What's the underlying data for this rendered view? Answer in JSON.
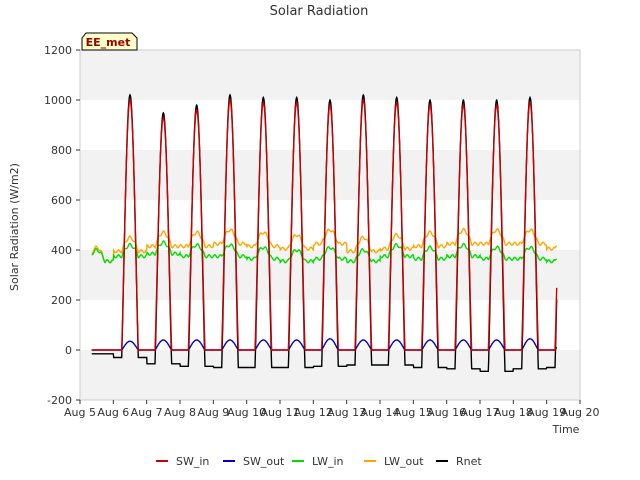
{
  "chart_data": {
    "type": "line",
    "title": "Solar Radiation",
    "xlabel": "Time",
    "ylabel": "Solar Radiation (W/m2)",
    "site_label": "EE_met",
    "xlim": [
      5,
      20
    ],
    "ylim": [
      -200,
      1200
    ],
    "x_ticks": [
      5,
      6,
      7,
      8,
      9,
      10,
      11,
      12,
      13,
      14,
      15,
      16,
      17,
      18,
      19,
      20
    ],
    "x_tick_labels": [
      "Aug 5",
      "Aug 6",
      "Aug 7",
      "Aug 8",
      "Aug 9",
      "Aug 10",
      "Aug 11",
      "Aug 12",
      "Aug 13",
      "Aug 14",
      "Aug 15",
      "Aug 16",
      "Aug 17",
      "Aug 18",
      "Aug 19",
      "Aug 20"
    ],
    "y_ticks": [
      -200,
      0,
      200,
      400,
      600,
      800,
      1000,
      1200
    ],
    "y_tick_labels": [
      "-200",
      "0",
      "200",
      "400",
      "600",
      "800",
      "1000",
      "1200"
    ],
    "grid": "horizontal bands",
    "legend_position": "bottom",
    "x_start": 5.35,
    "x_end": 19.3,
    "sunrise_offset": 0.25,
    "sunset_offset": 0.75,
    "days": [
      {
        "day": 5,
        "sw_peak": 0,
        "sw_out_peak": 0,
        "lw_in": 400,
        "lw_out": 410,
        "rnet_night": -15
      },
      {
        "day": 6,
        "sw_peak": 1000,
        "sw_out_peak": 35,
        "lw_in": 420,
        "lw_out": 450,
        "rnet_night": -30
      },
      {
        "day": 7,
        "sw_peak": 930,
        "sw_out_peak": 40,
        "lw_in": 430,
        "lw_out": 470,
        "rnet_night": -55
      },
      {
        "day": 8,
        "sw_peak": 960,
        "sw_out_peak": 40,
        "lw_in": 420,
        "lw_out": 470,
        "rnet_night": -65
      },
      {
        "day": 9,
        "sw_peak": 1000,
        "sw_out_peak": 40,
        "lw_in": 420,
        "lw_out": 480,
        "rnet_night": -70
      },
      {
        "day": 10,
        "sw_peak": 990,
        "sw_out_peak": 40,
        "lw_in": 410,
        "lw_out": 470,
        "rnet_night": -70
      },
      {
        "day": 11,
        "sw_peak": 990,
        "sw_out_peak": 40,
        "lw_in": 400,
        "lw_out": 460,
        "rnet_night": -70
      },
      {
        "day": 12,
        "sw_peak": 980,
        "sw_out_peak": 45,
        "lw_in": 410,
        "lw_out": 480,
        "rnet_night": -65
      },
      {
        "day": 13,
        "sw_peak": 1000,
        "sw_out_peak": 40,
        "lw_in": 400,
        "lw_out": 450,
        "rnet_night": -60
      },
      {
        "day": 14,
        "sw_peak": 990,
        "sw_out_peak": 40,
        "lw_in": 420,
        "lw_out": 460,
        "rnet_night": -60
      },
      {
        "day": 15,
        "sw_peak": 980,
        "sw_out_peak": 40,
        "lw_in": 410,
        "lw_out": 470,
        "rnet_night": -70
      },
      {
        "day": 16,
        "sw_peak": 980,
        "sw_out_peak": 40,
        "lw_in": 420,
        "lw_out": 480,
        "rnet_night": -75
      },
      {
        "day": 17,
        "sw_peak": 980,
        "sw_out_peak": 40,
        "lw_in": 410,
        "lw_out": 480,
        "rnet_night": -85
      },
      {
        "day": 18,
        "sw_peak": 990,
        "sw_out_peak": 45,
        "lw_in": 410,
        "lw_out": 480,
        "rnet_night": -75
      },
      {
        "day": 19,
        "sw_peak": 960,
        "sw_out_peak": 45,
        "lw_in": 400,
        "lw_out": 460,
        "rnet_night": -70
      }
    ],
    "series": [
      {
        "name": "SW_in",
        "color": "#cc0000",
        "key": "sw_in"
      },
      {
        "name": "SW_out",
        "color": "#0000cc",
        "key": "sw_out"
      },
      {
        "name": "LW_in",
        "color": "#00dd00",
        "key": "lw_in"
      },
      {
        "name": "LW_out",
        "color": "#ffa500",
        "key": "lw_out"
      },
      {
        "name": "Rnet",
        "color": "#000000",
        "key": "rnet"
      }
    ]
  }
}
